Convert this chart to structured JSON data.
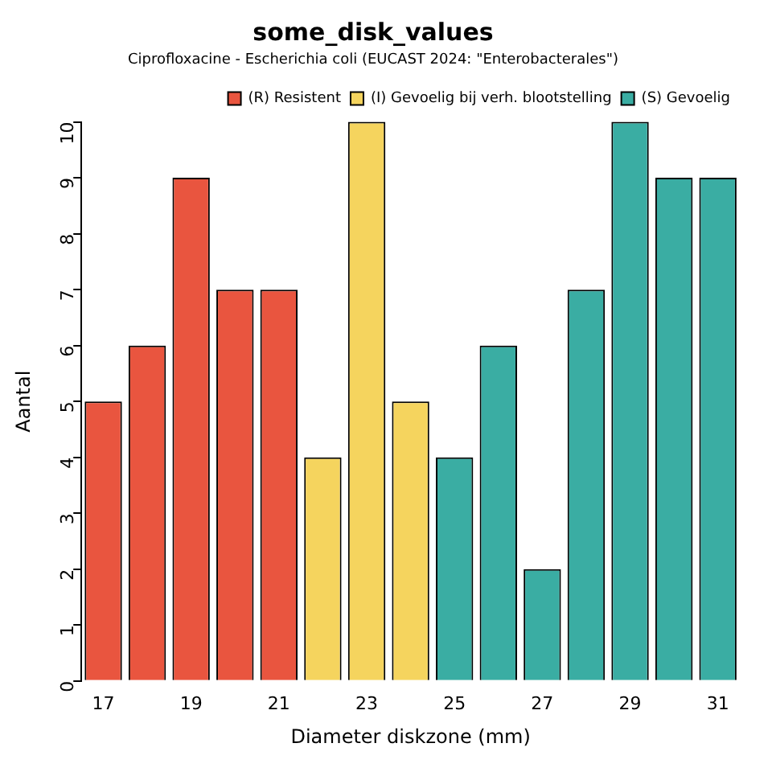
{
  "chart_data": {
    "type": "bar",
    "title": "some_disk_values",
    "subtitle": "Ciprofloxacine - Escherichia coli (EUCAST 2024: \"Enterobacterales\")",
    "xlabel": "Diameter diskzone (mm)",
    "ylabel": "Aantal",
    "categories": [
      "17",
      null,
      "19",
      null,
      "21",
      null,
      "23",
      null,
      "25",
      null,
      "27",
      null,
      "29",
      null,
      "31"
    ],
    "series": [
      {
        "name": "(R) Resistent",
        "color": "#e9553f",
        "values": [
          5,
          6,
          9,
          7,
          7,
          null,
          null,
          null,
          null,
          null,
          null,
          null,
          null,
          null,
          null
        ]
      },
      {
        "name": "(I) Gevoelig bij verh. blootstelling",
        "color": "#f5d45e",
        "values": [
          null,
          null,
          null,
          null,
          null,
          4,
          10,
          5,
          null,
          null,
          null,
          null,
          null,
          null,
          null
        ]
      },
      {
        "name": "(S) Gevoelig",
        "color": "#3aada3",
        "values": [
          null,
          null,
          null,
          null,
          null,
          null,
          null,
          null,
          4,
          6,
          2,
          7,
          10,
          9,
          9
        ]
      }
    ],
    "ylim": [
      0,
      10
    ],
    "yticks": [
      0,
      1,
      2,
      3,
      4,
      5,
      6,
      7,
      8,
      9,
      10
    ],
    "grid": false,
    "legend": "top right"
  }
}
